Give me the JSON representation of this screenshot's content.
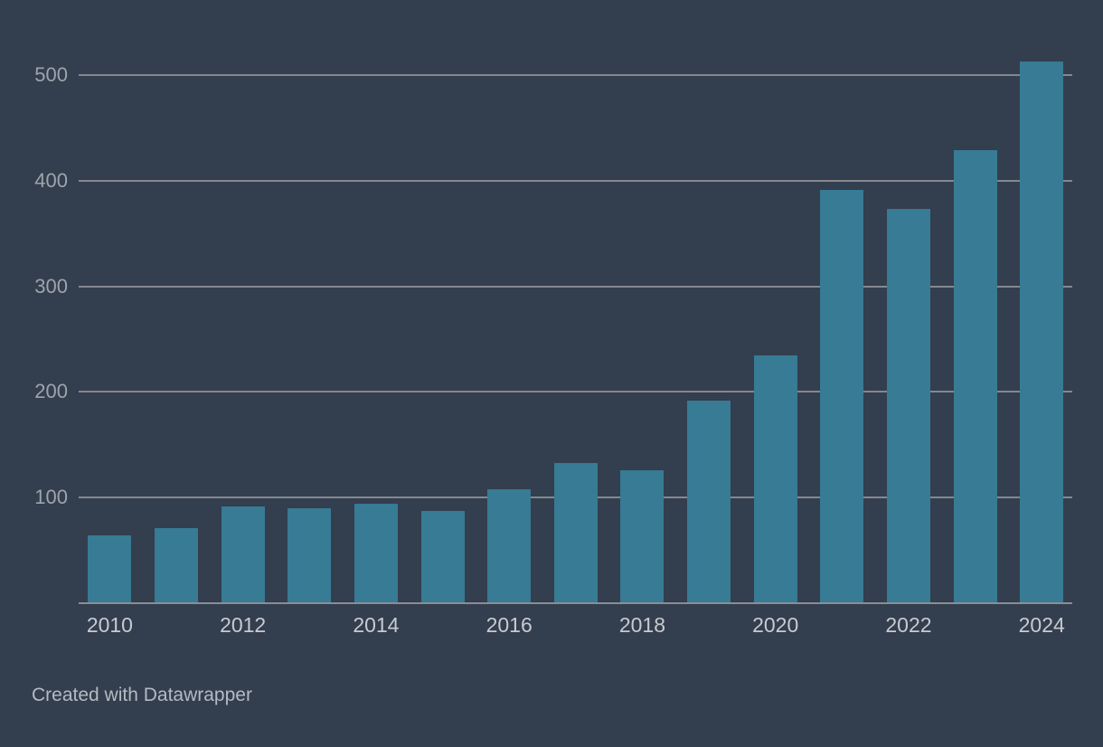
{
  "chart_data": {
    "type": "bar",
    "title": "",
    "xlabel": "",
    "ylabel": "",
    "categories": [
      "2010",
      "2011",
      "2012",
      "2013",
      "2014",
      "2015",
      "2016",
      "2017",
      "2018",
      "2019",
      "2020",
      "2021",
      "2022",
      "2023",
      "2024"
    ],
    "values": [
      64,
      71,
      92,
      90,
      94,
      87,
      108,
      133,
      126,
      192,
      235,
      391,
      373,
      429,
      513
    ],
    "ylim": [
      0,
      525
    ],
    "yticks": [
      100,
      200,
      300,
      400,
      500
    ],
    "xtick_labels_shown": [
      "2010",
      "2012",
      "2014",
      "2016",
      "2018",
      "2020",
      "2022",
      "2024"
    ],
    "grid": "horizontal gridlines on, behind bars",
    "legend": "none",
    "series_name": ""
  },
  "colors": {
    "background": "#333E4E",
    "bar": "#377B95",
    "gridline": "#84888F",
    "axis_line": "#8A8E95",
    "y_tick_text": "#9EA4AC",
    "x_tick_text": "#C7CBD1",
    "attribution_text": "#B4BAC2"
  },
  "attribution": {
    "text": "Created with Datawrapper"
  }
}
